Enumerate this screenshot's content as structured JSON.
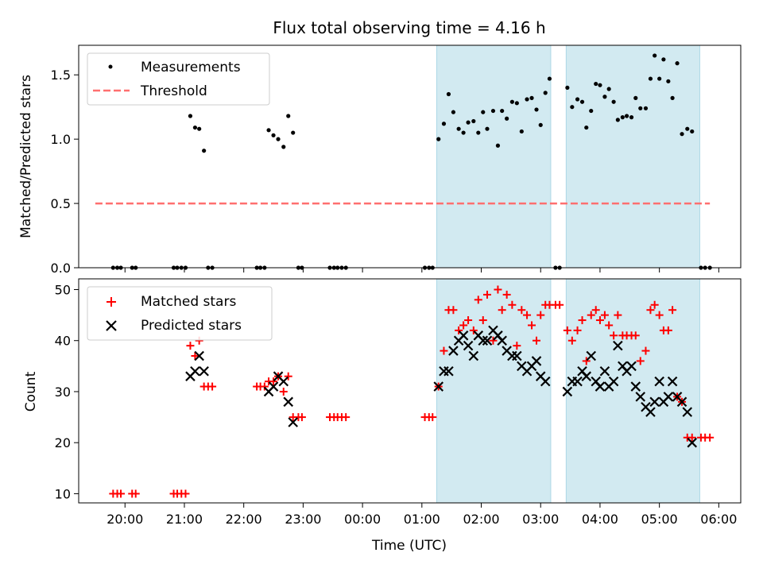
{
  "figure": {
    "title": "Flux total observing time = 4.16 h"
  },
  "colors": {
    "shade": "#add8e6",
    "threshold": "#ff6f6f",
    "matched": "#ff0000",
    "predicted": "#000000",
    "measurement": "#000000"
  },
  "chart_data": [
    {
      "type": "scatter",
      "ylabel": "Matched/Predicted stars",
      "xlabel": "",
      "x_unit": "hours since 19:00 UTC",
      "xlim": [
        0.22,
        11.37
      ],
      "ylim": [
        0,
        1.73
      ],
      "yticks": [
        0.0,
        0.5,
        1.0,
        1.5
      ],
      "ytick_labels": [
        "0.0",
        "0.5",
        "1.0",
        "1.5"
      ],
      "shaded_intervals": [
        [
          6.25,
          8.17
        ],
        [
          8.43,
          10.68
        ]
      ],
      "legend": {
        "position": "upper-left",
        "entries": [
          "Measurements",
          "Threshold"
        ]
      },
      "series": [
        {
          "name": "Measurements",
          "marker": "dot",
          "points": [
            [
              0.8,
              0
            ],
            [
              0.87,
              0
            ],
            [
              0.93,
              0
            ],
            [
              1.12,
              0
            ],
            [
              1.18,
              0
            ],
            [
              1.82,
              0
            ],
            [
              1.88,
              0
            ],
            [
              1.95,
              0
            ],
            [
              2.02,
              0
            ],
            [
              2.1,
              1.18
            ],
            [
              2.18,
              1.09
            ],
            [
              2.25,
              1.08
            ],
            [
              2.33,
              0.91
            ],
            [
              2.4,
              0
            ],
            [
              2.47,
              0
            ],
            [
              3.22,
              0
            ],
            [
              3.28,
              0
            ],
            [
              3.35,
              0
            ],
            [
              3.42,
              1.07
            ],
            [
              3.5,
              1.03
            ],
            [
              3.58,
              1.0
            ],
            [
              3.67,
              0.94
            ],
            [
              3.75,
              1.18
            ],
            [
              3.83,
              1.05
            ],
            [
              3.92,
              0
            ],
            [
              3.98,
              0
            ],
            [
              4.45,
              0
            ],
            [
              4.52,
              0
            ],
            [
              4.58,
              0
            ],
            [
              4.65,
              0
            ],
            [
              4.72,
              0
            ],
            [
              6.05,
              0
            ],
            [
              6.12,
              0
            ],
            [
              6.18,
              0
            ],
            [
              6.28,
              1.0
            ],
            [
              6.37,
              1.12
            ],
            [
              6.45,
              1.35
            ],
            [
              6.53,
              1.21
            ],
            [
              6.62,
              1.08
            ],
            [
              6.7,
              1.05
            ],
            [
              6.78,
              1.13
            ],
            [
              6.87,
              1.14
            ],
            [
              6.95,
              1.05
            ],
            [
              7.03,
              1.21
            ],
            [
              7.1,
              1.08
            ],
            [
              7.2,
              1.22
            ],
            [
              7.28,
              0.95
            ],
            [
              7.35,
              1.22
            ],
            [
              7.43,
              1.16
            ],
            [
              7.52,
              1.29
            ],
            [
              7.6,
              1.28
            ],
            [
              7.68,
              1.06
            ],
            [
              7.77,
              1.31
            ],
            [
              7.85,
              1.32
            ],
            [
              7.93,
              1.23
            ],
            [
              8.0,
              1.11
            ],
            [
              8.08,
              1.36
            ],
            [
              8.15,
              1.47
            ],
            [
              8.25,
              0
            ],
            [
              8.32,
              0
            ],
            [
              8.45,
              1.4
            ],
            [
              8.53,
              1.25
            ],
            [
              8.62,
              1.31
            ],
            [
              8.7,
              1.29
            ],
            [
              8.77,
              1.09
            ],
            [
              8.85,
              1.22
            ],
            [
              8.93,
              1.43
            ],
            [
              9.0,
              1.42
            ],
            [
              9.08,
              1.33
            ],
            [
              9.15,
              1.39
            ],
            [
              9.23,
              1.29
            ],
            [
              9.3,
              1.15
            ],
            [
              9.38,
              1.17
            ],
            [
              9.45,
              1.18
            ],
            [
              9.53,
              1.17
            ],
            [
              9.6,
              1.32
            ],
            [
              9.68,
              1.24
            ],
            [
              9.77,
              1.24
            ],
            [
              9.85,
              1.47
            ],
            [
              9.92,
              1.65
            ],
            [
              10.0,
              1.47
            ],
            [
              10.07,
              1.62
            ],
            [
              10.15,
              1.45
            ],
            [
              10.22,
              1.32
            ],
            [
              10.3,
              1.59
            ],
            [
              10.38,
              1.04
            ],
            [
              10.47,
              1.08
            ],
            [
              10.55,
              1.06
            ],
            [
              10.7,
              0
            ],
            [
              10.77,
              0
            ],
            [
              10.85,
              0
            ]
          ]
        },
        {
          "name": "Threshold",
          "style": "dashed",
          "x_range": [
            0.5,
            10.85
          ],
          "y": 0.5
        }
      ]
    },
    {
      "type": "scatter",
      "ylabel": "Count",
      "xlabel": "Time (UTC)",
      "x_unit": "hours since 19:00 UTC",
      "xlim": [
        0.22,
        11.37
      ],
      "ylim": [
        8.2,
        52.1
      ],
      "yticks": [
        10,
        20,
        30,
        40,
        50
      ],
      "ytick_labels": [
        "10",
        "20",
        "30",
        "40",
        "50"
      ],
      "xticks": [
        1,
        2,
        3,
        4,
        5,
        6,
        7,
        8,
        9,
        10,
        11
      ],
      "xtick_labels": [
        "20:00",
        "21:00",
        "22:00",
        "23:00",
        "00:00",
        "01:00",
        "02:00",
        "03:00",
        "04:00",
        "05:00",
        "06:00"
      ],
      "shaded_intervals": [
        [
          6.25,
          8.17
        ],
        [
          8.43,
          10.68
        ]
      ],
      "legend": {
        "position": "upper-left",
        "entries": [
          "Matched stars",
          "Predicted stars"
        ]
      },
      "series": [
        {
          "name": "Matched stars",
          "marker": "plus",
          "points": [
            [
              0.8,
              10
            ],
            [
              0.87,
              10
            ],
            [
              0.93,
              10
            ],
            [
              1.12,
              10
            ],
            [
              1.18,
              10
            ],
            [
              1.82,
              10
            ],
            [
              1.88,
              10
            ],
            [
              1.95,
              10
            ],
            [
              2.02,
              10
            ],
            [
              2.1,
              39
            ],
            [
              2.18,
              37
            ],
            [
              2.25,
              40
            ],
            [
              2.33,
              31
            ],
            [
              2.4,
              31
            ],
            [
              2.47,
              31
            ],
            [
              3.22,
              31
            ],
            [
              3.28,
              31
            ],
            [
              3.35,
              31
            ],
            [
              3.42,
              32
            ],
            [
              3.5,
              32
            ],
            [
              3.58,
              33
            ],
            [
              3.67,
              30
            ],
            [
              3.75,
              33
            ],
            [
              3.83,
              25
            ],
            [
              3.92,
              25
            ],
            [
              3.98,
              25
            ],
            [
              4.45,
              25
            ],
            [
              4.52,
              25
            ],
            [
              4.58,
              25
            ],
            [
              4.65,
              25
            ],
            [
              4.72,
              25
            ],
            [
              6.05,
              25
            ],
            [
              6.12,
              25
            ],
            [
              6.18,
              25
            ],
            [
              6.28,
              31
            ],
            [
              6.37,
              38
            ],
            [
              6.45,
              46
            ],
            [
              6.53,
              46
            ],
            [
              6.62,
              42
            ],
            [
              6.7,
              43
            ],
            [
              6.78,
              44
            ],
            [
              6.87,
              42
            ],
            [
              6.95,
              48
            ],
            [
              7.03,
              44
            ],
            [
              7.1,
              49
            ],
            [
              7.2,
              40
            ],
            [
              7.28,
              50
            ],
            [
              7.35,
              46
            ],
            [
              7.43,
              49
            ],
            [
              7.52,
              47
            ],
            [
              7.6,
              39
            ],
            [
              7.68,
              46
            ],
            [
              7.77,
              45
            ],
            [
              7.85,
              43
            ],
            [
              7.93,
              40
            ],
            [
              8.0,
              45
            ],
            [
              8.08,
              47
            ],
            [
              8.15,
              47
            ],
            [
              8.25,
              47
            ],
            [
              8.32,
              47
            ],
            [
              8.45,
              42
            ],
            [
              8.53,
              40
            ],
            [
              8.62,
              42
            ],
            [
              8.7,
              44
            ],
            [
              8.77,
              36
            ],
            [
              8.85,
              45
            ],
            [
              8.93,
              46
            ],
            [
              9.0,
              44
            ],
            [
              9.08,
              45
            ],
            [
              9.15,
              43
            ],
            [
              9.23,
              41
            ],
            [
              9.3,
              45
            ],
            [
              9.38,
              41
            ],
            [
              9.45,
              41
            ],
            [
              9.53,
              41
            ],
            [
              9.6,
              41
            ],
            [
              9.68,
              36
            ],
            [
              9.77,
              38
            ],
            [
              9.85,
              46
            ],
            [
              9.92,
              47
            ],
            [
              10.0,
              45
            ],
            [
              10.07,
              42
            ],
            [
              10.15,
              42
            ],
            [
              10.22,
              46
            ],
            [
              10.3,
              29
            ],
            [
              10.38,
              28
            ],
            [
              10.47,
              21
            ],
            [
              10.55,
              21
            ],
            [
              10.7,
              21
            ],
            [
              10.77,
              21
            ],
            [
              10.85,
              21
            ]
          ]
        },
        {
          "name": "Predicted stars",
          "marker": "x",
          "points": [
            [
              2.1,
              33
            ],
            [
              2.18,
              34
            ],
            [
              2.25,
              37
            ],
            [
              2.33,
              34
            ],
            [
              3.42,
              30
            ],
            [
              3.5,
              31
            ],
            [
              3.58,
              33
            ],
            [
              3.67,
              32
            ],
            [
              3.75,
              28
            ],
            [
              3.83,
              24
            ],
            [
              6.28,
              31
            ],
            [
              6.37,
              34
            ],
            [
              6.45,
              34
            ],
            [
              6.53,
              38
            ],
            [
              6.62,
              40
            ],
            [
              6.7,
              41
            ],
            [
              6.78,
              39
            ],
            [
              6.87,
              37
            ],
            [
              6.95,
              41
            ],
            [
              7.03,
              40
            ],
            [
              7.1,
              40
            ],
            [
              7.2,
              42
            ],
            [
              7.28,
              41
            ],
            [
              7.35,
              40
            ],
            [
              7.43,
              38
            ],
            [
              7.52,
              37
            ],
            [
              7.6,
              37
            ],
            [
              7.68,
              35
            ],
            [
              7.77,
              34
            ],
            [
              7.85,
              35
            ],
            [
              7.93,
              36
            ],
            [
              8.0,
              33
            ],
            [
              8.08,
              32
            ],
            [
              8.45,
              30
            ],
            [
              8.53,
              32
            ],
            [
              8.62,
              32
            ],
            [
              8.7,
              34
            ],
            [
              8.77,
              33
            ],
            [
              8.85,
              37
            ],
            [
              8.93,
              32
            ],
            [
              9.0,
              31
            ],
            [
              9.08,
              34
            ],
            [
              9.15,
              31
            ],
            [
              9.23,
              32
            ],
            [
              9.3,
              39
            ],
            [
              9.38,
              35
            ],
            [
              9.45,
              34
            ],
            [
              9.53,
              35
            ],
            [
              9.6,
              31
            ],
            [
              9.68,
              29
            ],
            [
              9.77,
              27
            ],
            [
              9.85,
              26
            ],
            [
              9.92,
              28
            ],
            [
              10.0,
              32
            ],
            [
              10.07,
              28
            ],
            [
              10.15,
              29
            ],
            [
              10.22,
              32
            ],
            [
              10.3,
              29
            ],
            [
              10.38,
              28
            ],
            [
              10.47,
              26
            ],
            [
              10.55,
              20
            ]
          ]
        }
      ]
    }
  ]
}
